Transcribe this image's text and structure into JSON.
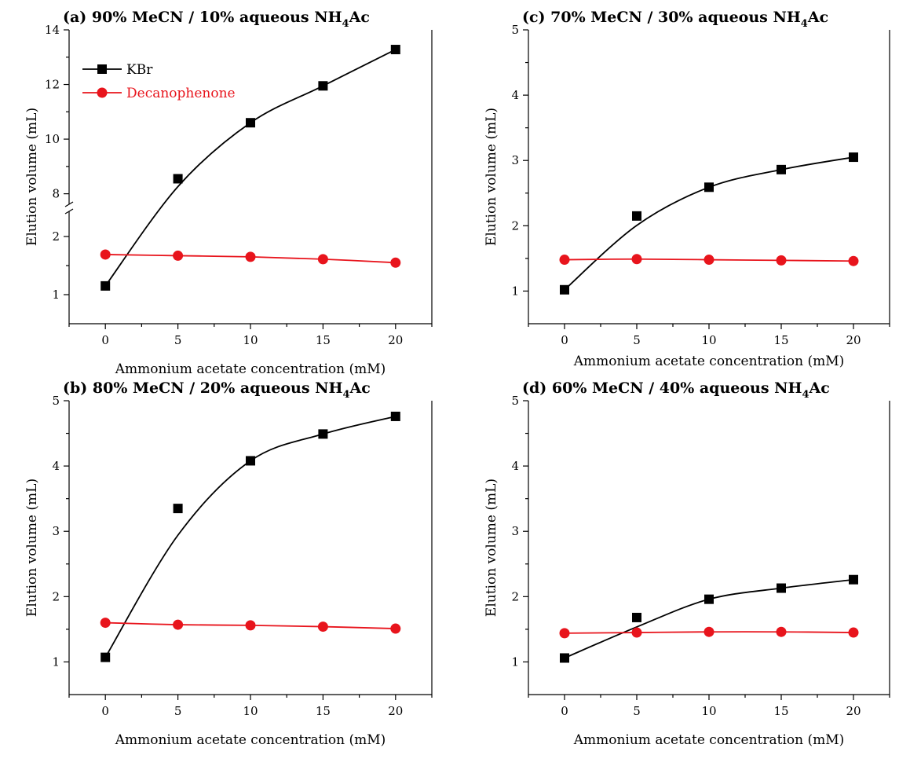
{
  "series_names": {
    "kbr": "KBr",
    "deca": "Decanophenone"
  },
  "colors": {
    "kbr": "#000000",
    "deca": "#e8141c"
  },
  "chart_data": [
    {
      "id": "a",
      "type": "line",
      "title": "(a)  90% MeCN / 10% aqueous NH",
      "title_sub": "4",
      "title_tail": "Ac",
      "xlabel": "Ammonium acetate concentration (mM)",
      "ylabel": "Elution volume (mL)",
      "xlim": [
        -2.5,
        22.5
      ],
      "ylim": [
        0.5,
        14
      ],
      "axis_break": [
        2.5,
        7.5
      ],
      "x_ticks": [
        0,
        5,
        10,
        15,
        20
      ],
      "y_ticks": [
        1,
        2,
        8,
        10,
        12,
        14
      ],
      "legend": "top-left",
      "x": [
        0,
        5,
        10,
        15,
        20
      ],
      "series": [
        {
          "name": "KBr",
          "key": "kbr",
          "values": [
            1.15,
            8.55,
            10.6,
            11.95,
            13.28
          ]
        },
        {
          "name": "Decanophenone",
          "key": "deca",
          "values": [
            1.69,
            1.67,
            1.65,
            1.61,
            1.55
          ]
        }
      ]
    },
    {
      "id": "c",
      "type": "line",
      "title": "(c)  70% MeCN / 30% aqueous NH",
      "title_sub": "4",
      "title_tail": "Ac",
      "xlabel": "Ammonium acetate concentration (mM)",
      "ylabel": "Elution volume (mL)",
      "xlim": [
        -2.5,
        22.5
      ],
      "ylim": [
        0.5,
        5
      ],
      "x_ticks": [
        0,
        5,
        10,
        15,
        20
      ],
      "y_ticks": [
        1,
        2,
        3,
        4,
        5
      ],
      "x": [
        0,
        5,
        10,
        15,
        20
      ],
      "series": [
        {
          "name": "KBr",
          "key": "kbr",
          "values": [
            1.02,
            2.15,
            2.59,
            2.86,
            3.05
          ]
        },
        {
          "name": "Decanophenone",
          "key": "deca",
          "values": [
            1.48,
            1.49,
            1.48,
            1.47,
            1.46
          ]
        }
      ]
    },
    {
      "id": "b",
      "type": "line",
      "title": "(b)  80% MeCN / 20% aqueous NH",
      "title_sub": "4",
      "title_tail": "Ac",
      "xlabel": "Ammonium acetate concentration (mM)",
      "ylabel": "Elution volume (mL)",
      "xlim": [
        -2.5,
        22.5
      ],
      "ylim": [
        0.5,
        5
      ],
      "x_ticks": [
        0,
        5,
        10,
        15,
        20
      ],
      "y_ticks": [
        1,
        2,
        3,
        4,
        5
      ],
      "x": [
        0,
        5,
        10,
        15,
        20
      ],
      "series": [
        {
          "name": "KBr",
          "key": "kbr",
          "values": [
            1.07,
            3.35,
            4.08,
            4.49,
            4.76
          ]
        },
        {
          "name": "Decanophenone",
          "key": "deca",
          "values": [
            1.6,
            1.57,
            1.56,
            1.54,
            1.51
          ]
        }
      ]
    },
    {
      "id": "d",
      "type": "line",
      "title": "(d)  60% MeCN / 40% aqueous NH",
      "title_sub": "4",
      "title_tail": "Ac",
      "xlabel": "Ammonium acetate concentration (mM)",
      "ylabel": "Elution volume (mL)",
      "xlim": [
        -2.5,
        22.5
      ],
      "ylim": [
        0.5,
        5
      ],
      "x_ticks": [
        0,
        5,
        10,
        15,
        20
      ],
      "y_ticks": [
        1,
        2,
        3,
        4,
        5
      ],
      "x": [
        0,
        5,
        10,
        15,
        20
      ],
      "series": [
        {
          "name": "KBr",
          "key": "kbr",
          "values": [
            1.06,
            1.68,
            1.96,
            2.13,
            2.26
          ]
        },
        {
          "name": "Decanophenone",
          "key": "deca",
          "values": [
            1.44,
            1.45,
            1.46,
            1.46,
            1.45
          ]
        }
      ]
    }
  ]
}
